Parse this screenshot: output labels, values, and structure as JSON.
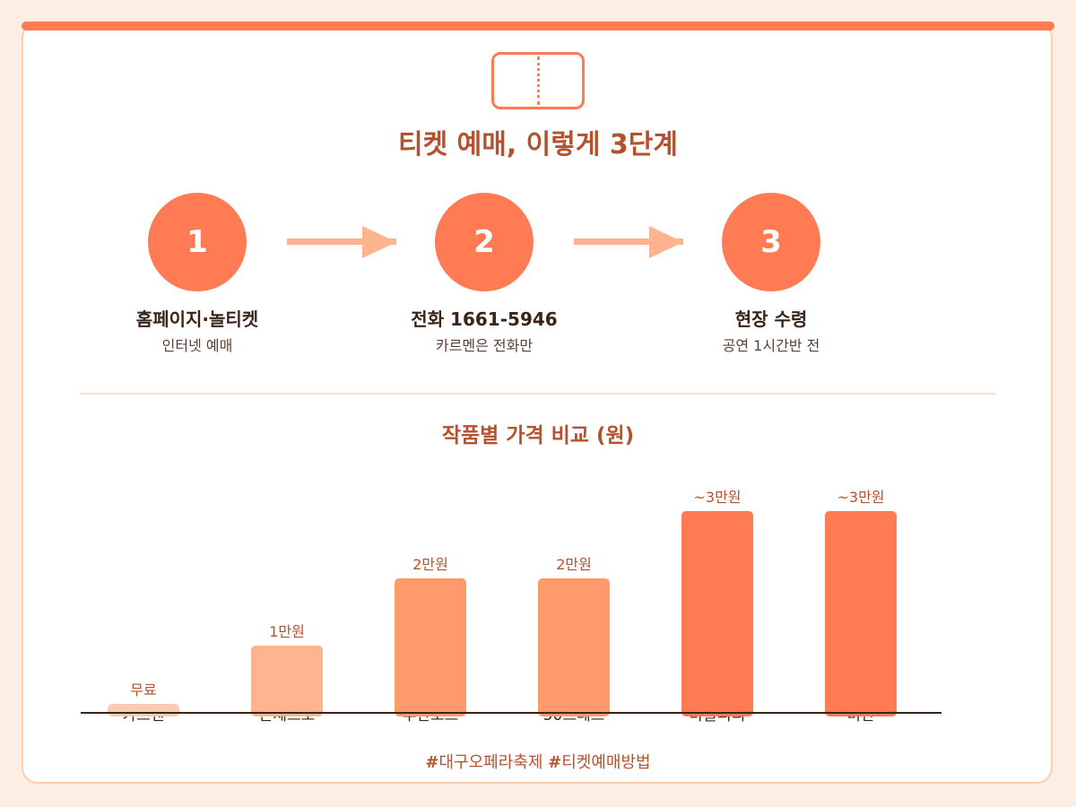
{
  "title": "티켓 예매, 이렇게 3단계",
  "steps": [
    {
      "number": "1",
      "title": "홈페이지·놀티켓",
      "subtitle": "인터넷 예매"
    },
    {
      "number": "2",
      "title": "전화 1661-5946",
      "subtitle": "카르멘은 전화만"
    },
    {
      "number": "3",
      "title": "현장 수령",
      "subtitle": "공연 1시간반 전"
    }
  ],
  "hashtags": [
    "대구오페라축제",
    "티켓예매방법"
  ],
  "colors": {
    "accent": "#ff7b54",
    "bar_light": "#ffb48f",
    "bar_mid": "#ff9a6c",
    "bar_dark": "#ff7b54",
    "title_text": "#b5522e"
  },
  "chart_data": {
    "type": "bar",
    "title": "작품별 가격 비교 (원)",
    "categories": [
      "카르멘",
      "돈체르또",
      "투란도트",
      "50스테스",
      "마술피리",
      "비안"
    ],
    "values": [
      0,
      10000,
      20000,
      20000,
      30000,
      30000
    ],
    "value_labels": [
      "무료",
      "1만원",
      "2만원",
      "2만원",
      "~3만원",
      "~3만원"
    ],
    "bar_colors": [
      "#fccab0",
      "#ffb48f",
      "#ff9a6c",
      "#ff9a6c",
      "#ff7b54",
      "#ff7b54"
    ],
    "ylim": [
      0,
      30000
    ],
    "grid": false,
    "legend": "none"
  }
}
